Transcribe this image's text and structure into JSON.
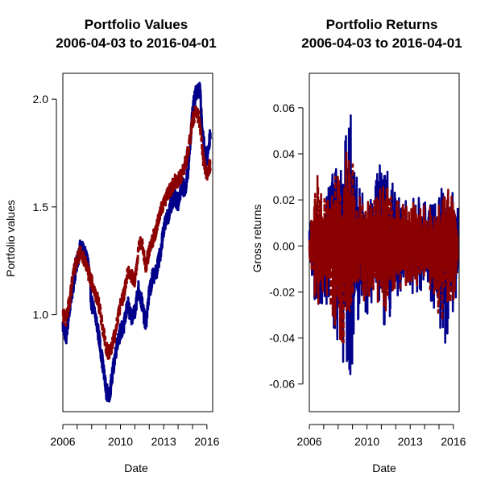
{
  "chart_data": [
    {
      "type": "line",
      "title": [
        "Portfolio Values",
        "2006-04-03 to 2016-04-01"
      ],
      "xlabel": "Date",
      "ylabel": "Portfolio values",
      "xlim": [
        2006.0,
        2016.4
      ],
      "ylim": [
        0.55,
        2.12
      ],
      "x_ticks": [
        2006,
        2007,
        2008,
        2009,
        2010,
        2011,
        2012,
        2013,
        2014,
        2015,
        2016
      ],
      "x_tick_labels": [
        {
          "value": 2006,
          "label": "2006"
        },
        {
          "value": 2010,
          "label": "2010"
        },
        {
          "value": 2013,
          "label": "2013"
        },
        {
          "value": 2016,
          "label": "2016"
        }
      ],
      "y_ticks": [
        1.0,
        1.5,
        2.0
      ],
      "y_tick_labels": [
        "1.0",
        "1.5",
        "2.0"
      ],
      "grid": false,
      "series": [
        {
          "color": "#00008B",
          "style": "solid",
          "x": [
            2006.0,
            2006.25,
            2006.5,
            2006.75,
            2007.0,
            2007.25,
            2007.5,
            2007.75,
            2008.0,
            2008.25,
            2008.5,
            2008.75,
            2009.0,
            2009.2,
            2009.4,
            2009.6,
            2009.8,
            2010.0,
            2010.25,
            2010.5,
            2010.75,
            2011.0,
            2011.25,
            2011.5,
            2011.75,
            2012.0,
            2012.25,
            2012.5,
            2012.75,
            2013.0,
            2013.25,
            2013.5,
            2013.75,
            2014.0,
            2014.25,
            2014.5,
            2014.75,
            2015.0,
            2015.25,
            2015.5,
            2015.75,
            2016.0,
            2016.25
          ],
          "y": [
            0.95,
            0.9,
            1.05,
            1.15,
            1.25,
            1.32,
            1.28,
            1.25,
            1.05,
            1.0,
            0.9,
            0.78,
            0.65,
            0.62,
            0.7,
            0.8,
            0.88,
            0.92,
            0.95,
            1.05,
            0.98,
            1.02,
            1.12,
            1.05,
            0.95,
            1.1,
            1.18,
            1.2,
            1.28,
            1.4,
            1.45,
            1.5,
            1.55,
            1.52,
            1.6,
            1.58,
            1.7,
            1.95,
            2.03,
            2.05,
            1.8,
            1.72,
            1.85
          ],
          "ribbon": 0.04
        },
        {
          "color": "#8B0000",
          "style": "dashed",
          "x": [
            2006.0,
            2006.25,
            2006.5,
            2006.75,
            2007.0,
            2007.25,
            2007.5,
            2007.75,
            2008.0,
            2008.25,
            2008.5,
            2008.75,
            2009.0,
            2009.2,
            2009.4,
            2009.6,
            2009.8,
            2010.0,
            2010.25,
            2010.5,
            2010.75,
            2011.0,
            2011.25,
            2011.5,
            2011.75,
            2012.0,
            2012.25,
            2012.5,
            2012.75,
            2013.0,
            2013.25,
            2013.5,
            2013.75,
            2014.0,
            2014.25,
            2014.5,
            2014.75,
            2015.0,
            2015.25,
            2015.5,
            2015.75,
            2016.0,
            2016.25
          ],
          "y": [
            1.0,
            0.98,
            1.08,
            1.2,
            1.26,
            1.3,
            1.25,
            1.2,
            1.15,
            1.1,
            1.05,
            0.95,
            0.85,
            0.82,
            0.86,
            0.9,
            0.98,
            1.05,
            1.1,
            1.2,
            1.18,
            1.15,
            1.3,
            1.35,
            1.22,
            1.3,
            1.35,
            1.4,
            1.48,
            1.52,
            1.56,
            1.58,
            1.62,
            1.62,
            1.65,
            1.7,
            1.78,
            1.9,
            1.95,
            1.9,
            1.72,
            1.65,
            1.7
          ],
          "ribbon": 0.035
        }
      ]
    },
    {
      "type": "line",
      "title": [
        "Portfolio Returns",
        "2006-04-03 to 2016-04-01"
      ],
      "xlabel": "Date",
      "ylabel": "Gross returns",
      "xlim": [
        2006.0,
        2016.4
      ],
      "ylim": [
        -0.072,
        0.075
      ],
      "x_ticks": [
        2006,
        2007,
        2008,
        2009,
        2010,
        2011,
        2012,
        2013,
        2014,
        2015,
        2016
      ],
      "x_tick_labels": [
        {
          "value": 2006,
          "label": "2006"
        },
        {
          "value": 2010,
          "label": "2010"
        },
        {
          "value": 2013,
          "label": "2013"
        },
        {
          "value": 2016,
          "label": "2016"
        }
      ],
      "y_ticks": [
        -0.06,
        -0.04,
        -0.02,
        0.0,
        0.02,
        0.04,
        0.06
      ],
      "y_tick_labels": [
        "-0.06",
        "-0.04",
        "-0.02",
        "0.00",
        "0.02",
        "0.04",
        "0.06"
      ],
      "grid": false,
      "series": [
        {
          "color": "#00008B",
          "style": "solid",
          "x": [
            2006.0,
            2006.5,
            2007.0,
            2007.5,
            2008.0,
            2008.5,
            2008.8,
            2009.0,
            2009.3,
            2009.6,
            2010.0,
            2010.5,
            2011.0,
            2011.5,
            2012.0,
            2012.5,
            2013.0,
            2013.5,
            2014.0,
            2014.5,
            2015.0,
            2015.5,
            2016.0,
            2016.3
          ],
          "upper": [
            0.01,
            0.015,
            0.02,
            0.03,
            0.035,
            0.055,
            0.073,
            0.045,
            0.03,
            0.025,
            0.022,
            0.02,
            0.055,
            0.03,
            0.025,
            0.02,
            0.02,
            0.022,
            0.02,
            0.02,
            0.025,
            0.028,
            0.027,
            0.02
          ],
          "lower": [
            -0.01,
            -0.035,
            -0.025,
            -0.03,
            -0.045,
            -0.058,
            -0.065,
            -0.05,
            -0.035,
            -0.03,
            -0.03,
            -0.025,
            -0.035,
            -0.035,
            -0.025,
            -0.02,
            -0.02,
            -0.022,
            -0.02,
            -0.025,
            -0.04,
            -0.043,
            -0.03,
            -0.02
          ]
        },
        {
          "color": "#8B0000",
          "style": "dashed",
          "x": [
            2006.0,
            2006.5,
            2007.0,
            2007.5,
            2008.0,
            2008.5,
            2008.8,
            2009.0,
            2009.3,
            2009.6,
            2010.0,
            2010.5,
            2011.0,
            2011.5,
            2012.0,
            2012.5,
            2013.0,
            2013.5,
            2014.0,
            2014.5,
            2015.0,
            2015.5,
            2016.0,
            2016.3
          ],
          "upper": [
            0.008,
            0.033,
            0.02,
            0.028,
            0.033,
            0.048,
            0.045,
            0.04,
            0.03,
            0.022,
            0.02,
            0.02,
            0.03,
            0.025,
            0.02,
            0.018,
            0.018,
            0.02,
            0.018,
            0.02,
            0.022,
            0.025,
            0.025,
            0.018
          ],
          "lower": [
            -0.008,
            -0.03,
            -0.02,
            -0.028,
            -0.04,
            -0.05,
            -0.045,
            -0.04,
            -0.03,
            -0.025,
            -0.025,
            -0.022,
            -0.03,
            -0.028,
            -0.022,
            -0.018,
            -0.018,
            -0.02,
            -0.018,
            -0.022,
            -0.03,
            -0.035,
            -0.025,
            -0.018
          ]
        }
      ]
    }
  ]
}
